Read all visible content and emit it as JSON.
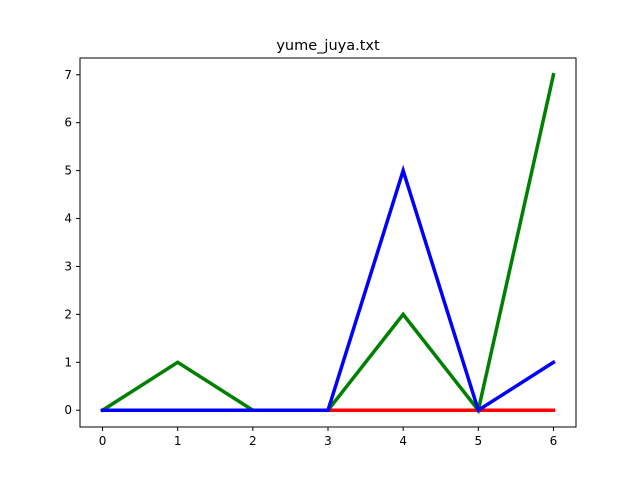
{
  "chart_data": {
    "type": "line",
    "title": "yume_juya.txt",
    "xlabel": "",
    "ylabel": "",
    "x": [
      0,
      1,
      2,
      3,
      4,
      5,
      6
    ],
    "xlim": [
      -0.3,
      6.3
    ],
    "ylim": [
      -0.35,
      7.35
    ],
    "xticks": [
      0,
      1,
      2,
      3,
      4,
      5,
      6
    ],
    "yticks": [
      0,
      1,
      2,
      3,
      4,
      5,
      6,
      7
    ],
    "grid": false,
    "series": [
      {
        "color": "#ff0000",
        "values": [
          0,
          0,
          0,
          0,
          0,
          0,
          0
        ]
      },
      {
        "color": "#008000",
        "values": [
          0,
          1,
          0,
          0,
          2,
          0,
          7
        ]
      },
      {
        "color": "#0000ff",
        "values": [
          0,
          0,
          0,
          0,
          5,
          0,
          1
        ]
      }
    ]
  }
}
